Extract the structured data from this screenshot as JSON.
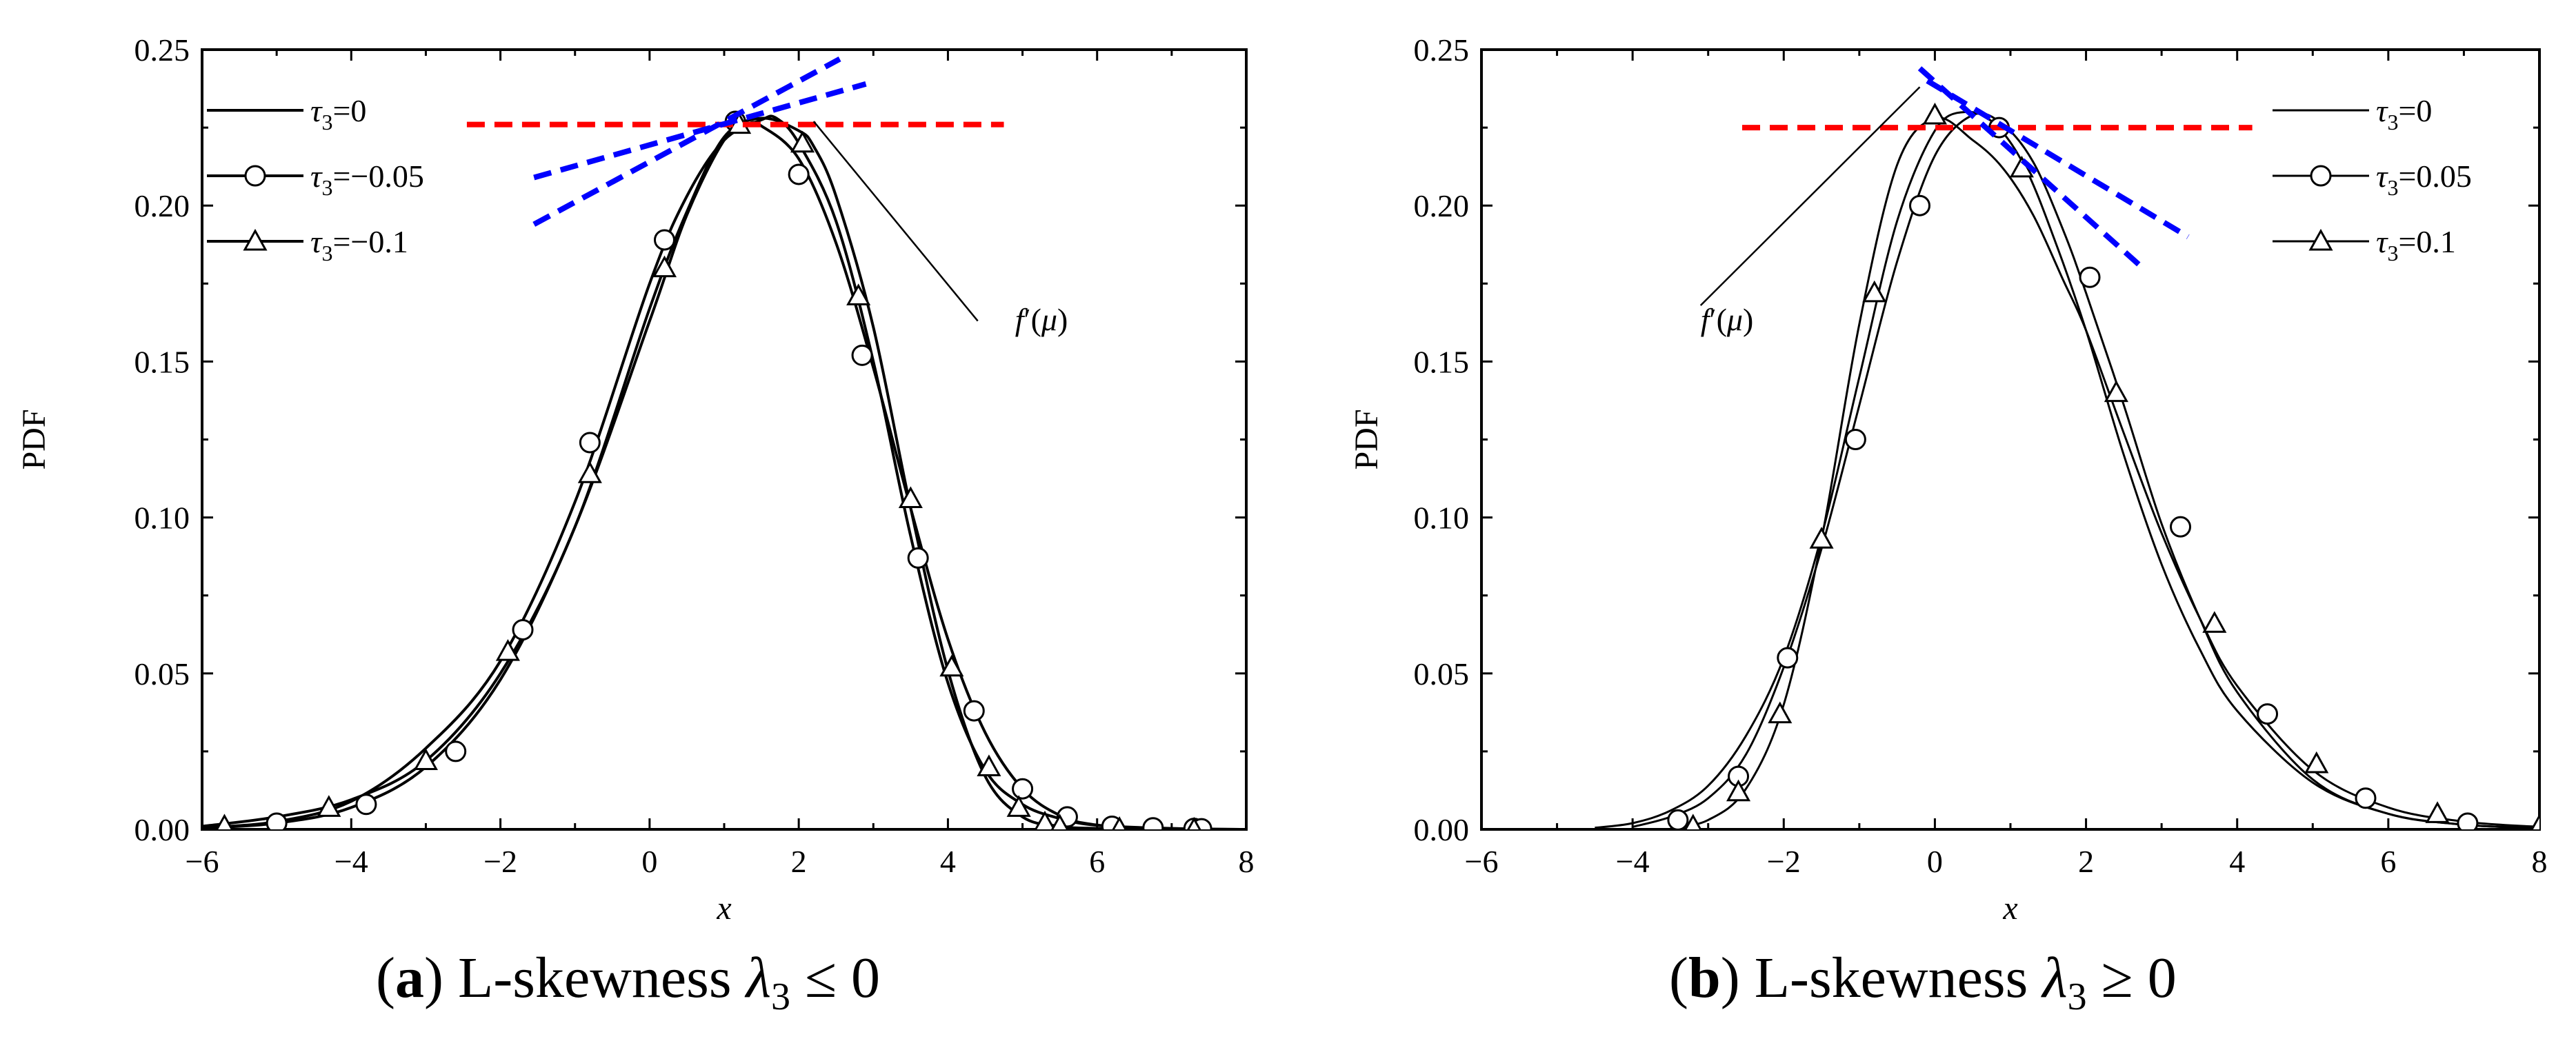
{
  "chart_data": [
    {
      "type": "line",
      "panel": "a",
      "xlabel": "x",
      "ylabel": "PDF",
      "xlim": [
        -6,
        8
      ],
      "ylim": [
        0,
        0.25
      ],
      "xticks": [
        -6,
        -4,
        -2,
        0,
        2,
        4,
        6,
        8
      ],
      "yticks": [
        0,
        0.05,
        0.1,
        0.15,
        0.2,
        0.25
      ],
      "xtick_labels": [
        "−6",
        "−4",
        "−2",
        "0",
        "2",
        "4",
        "6",
        "8"
      ],
      "ytick_labels": [
        "0.00",
        "0.05",
        "0.10",
        "0.15",
        "0.20",
        "0.25"
      ],
      "legend_position": "top-left",
      "series": [
        {
          "name": "τ3=0",
          "legend_main": "τ",
          "legend_sub": "3",
          "legend_rest": "=0",
          "marker": "none",
          "x": [
            -6,
            -5,
            -4,
            -3,
            -2,
            -1,
            0,
            0.5,
            1,
            1.3,
            1.5,
            2,
            2.5,
            3,
            3.5,
            4,
            4.5,
            5,
            5.5,
            6,
            7,
            8
          ],
          "y": [
            0.0004,
            0.002,
            0.007,
            0.02,
            0.048,
            0.097,
            0.163,
            0.197,
            0.221,
            0.226,
            0.2255,
            0.215,
            0.188,
            0.148,
            0.103,
            0.061,
            0.031,
            0.013,
            0.0045,
            0.0014,
            0.0001,
            0
          ]
        },
        {
          "name": "τ3=−0.05",
          "legend_main": "τ",
          "legend_sub": "3",
          "legend_rest": "=−0.05",
          "marker": "circle",
          "x": [
            -6,
            -5,
            -4,
            -3,
            -2,
            -1,
            0,
            0.5,
            1,
            1.5,
            1.7,
            2,
            2.5,
            3,
            3.5,
            4,
            4.5,
            5,
            5.5,
            6,
            7,
            8
          ],
          "y": [
            0.0005,
            0.0025,
            0.009,
            0.026,
            0.054,
            0.105,
            0.175,
            0.203,
            0.221,
            0.2275,
            0.228,
            0.22,
            0.195,
            0.15,
            0.094,
            0.047,
            0.019,
            0.008,
            0.0035,
            0.0013,
            0.0003,
            0
          ]
        },
        {
          "name": "τ3=−0.1",
          "legend_main": "τ",
          "legend_sub": "3",
          "legend_rest": "=−0.1",
          "marker": "triangle",
          "x": [
            -6,
            -5,
            -4,
            -3,
            -2,
            -1,
            0,
            0.5,
            1,
            1.5,
            2,
            2.2,
            2.5,
            3,
            3.5,
            4,
            4.5,
            5,
            5.5,
            6,
            7,
            8
          ],
          "y": [
            0.001,
            0.004,
            0.0095,
            0.022,
            0.05,
            0.097,
            0.167,
            0.198,
            0.222,
            0.228,
            0.224,
            0.219,
            0.203,
            0.161,
            0.103,
            0.051,
            0.017,
            0.004,
            0.001,
            0.0003,
            0,
            0
          ]
        }
      ],
      "markers": {
        "circle": {
          "x": [
            -5.0,
            -3.8,
            -2.6,
            -1.7,
            -0.8,
            0.2,
            1.15,
            2.0,
            2.85,
            3.6,
            4.35,
            5.0,
            5.6,
            6.2,
            6.75,
            7.3,
            7.4
          ],
          "y": [
            0.002,
            0.008,
            0.025,
            0.064,
            0.124,
            0.189,
            0.227,
            0.21,
            0.152,
            0.087,
            0.038,
            0.013,
            0.004,
            0.001,
            0.0005,
            0.0003,
            0.0002
          ]
        },
        "triangle": {
          "x": [
            -5.7,
            -4.3,
            -3.0,
            -1.9,
            -0.8,
            0.2,
            1.2,
            2.05,
            2.8,
            3.5,
            4.05,
            4.55,
            4.95,
            5.3,
            5.5,
            6.3,
            7.3
          ],
          "y": [
            0.001,
            0.007,
            0.022,
            0.057,
            0.114,
            0.18,
            0.226,
            0.22,
            0.171,
            0.106,
            0.052,
            0.02,
            0.007,
            0.002,
            0.001,
            0.0002,
            0
          ]
        }
      },
      "reference_lines": [
        {
          "color": "#ff0000",
          "x1": -2.45,
          "y1": 0.226,
          "x2": 4.75,
          "y2": 0.226
        },
        {
          "color": "#0000ff",
          "x1": -1.55,
          "y1": 0.194,
          "x2": 2.55,
          "y2": 0.247
        },
        {
          "color": "#0000ff",
          "x1": -1.55,
          "y1": 0.209,
          "x2": 2.9,
          "y2": 0.239
        }
      ],
      "annotation": {
        "text_italic": "f",
        "text_rest": "′(",
        "text_mu": "μ",
        "text_close": ")",
        "line_from": [
          2.2,
          0.227
        ],
        "line_to": [
          4.4,
          0.163
        ],
        "text_at": [
          4.9,
          0.16
        ]
      }
    },
    {
      "type": "line",
      "panel": "b",
      "xlabel": "x",
      "ylabel": "PDF",
      "xlim": [
        -6,
        8
      ],
      "ylim": [
        0,
        0.25
      ],
      "xticks": [
        -6,
        -4,
        -2,
        0,
        2,
        4,
        6,
        8
      ],
      "yticks": [
        0,
        0.05,
        0.1,
        0.15,
        0.2,
        0.25
      ],
      "xtick_labels": [
        "−6",
        "−4",
        "−2",
        "0",
        "2",
        "4",
        "6",
        "8"
      ],
      "ytick_labels": [
        "0.00",
        "0.05",
        "0.10",
        "0.15",
        "0.20",
        "0.25"
      ],
      "legend_position": "top-right",
      "series": [
        {
          "name": "τ3=0",
          "legend_main": "τ",
          "legend_sub": "3",
          "legend_rest": "=0",
          "marker": "none",
          "x": [
            -4.5,
            -4,
            -3.5,
            -3,
            -2.5,
            -2,
            -1.5,
            -1,
            -0.5,
            0,
            0.4,
            0.8,
            1.2,
            1.6,
            2,
            2.5,
            3,
            3.5,
            4,
            5,
            6,
            7,
            8
          ],
          "y": [
            0.0005,
            0.002,
            0.006,
            0.014,
            0.03,
            0.055,
            0.094,
            0.145,
            0.195,
            0.224,
            0.23,
            0.226,
            0.212,
            0.188,
            0.16,
            0.12,
            0.085,
            0.058,
            0.038,
            0.015,
            0.005,
            0.0015,
            0.0004
          ]
        },
        {
          "name": "τ3=0.05",
          "legend_main": "τ",
          "legend_sub": "3",
          "legend_rest": "=0.05",
          "marker": "circle",
          "x": [
            -4,
            -3.5,
            -3,
            -2.5,
            -2,
            -1.5,
            -1,
            -0.5,
            0,
            0.5,
            0.9,
            1.3,
            1.7,
            2,
            2.5,
            3,
            3.5,
            4,
            5,
            6,
            7,
            8
          ],
          "y": [
            0.0008,
            0.004,
            0.01,
            0.024,
            0.052,
            0.09,
            0.136,
            0.182,
            0.216,
            0.229,
            0.226,
            0.214,
            0.192,
            0.172,
            0.136,
            0.098,
            0.068,
            0.044,
            0.016,
            0.005,
            0.0015,
            0.0004
          ]
        },
        {
          "name": "τ3=0.1",
          "legend_main": "τ",
          "legend_sub": "3",
          "legend_rest": "=0.1",
          "marker": "triangle",
          "x": [
            -3.5,
            -3,
            -2.5,
            -2,
            -1.5,
            -1,
            -0.5,
            0,
            0.5,
            0.9,
            1.3,
            1.7,
            2,
            2.5,
            3,
            3.5,
            4,
            5,
            6,
            7,
            8
          ],
          "y": [
            0.0003,
            0.003,
            0.013,
            0.04,
            0.093,
            0.162,
            0.213,
            0.228,
            0.221,
            0.212,
            0.197,
            0.176,
            0.16,
            0.127,
            0.095,
            0.068,
            0.046,
            0.019,
            0.007,
            0.0025,
            0.0008
          ]
        }
      ],
      "markers": {
        "circle": {
          "x": [
            -3.4,
            -2.6,
            -1.95,
            -1.05,
            -0.2,
            0.85,
            2.05,
            3.25,
            4.4,
            5.7,
            7.05
          ],
          "y": [
            0.003,
            0.017,
            0.055,
            0.125,
            0.2,
            0.225,
            0.177,
            0.097,
            0.037,
            0.01,
            0.002
          ]
        },
        "triangle": {
          "x": [
            -3.2,
            -2.6,
            -2.05,
            -1.5,
            -0.8,
            0,
            1.15,
            2.4,
            3.7,
            5.05,
            6.65,
            8
          ],
          "y": [
            0.001,
            0.012,
            0.037,
            0.093,
            0.172,
            0.229,
            0.212,
            0.14,
            0.066,
            0.021,
            0.005,
            0.001
          ]
        }
      },
      "reference_lines": [
        {
          "color": "#ff0000",
          "x1": -2.55,
          "y1": 0.225,
          "x2": 4.2,
          "y2": 0.225
        },
        {
          "color": "#0000ff",
          "x1": -0.2,
          "y1": 0.244,
          "x2": 2.75,
          "y2": 0.18
        },
        {
          "color": "#0000ff",
          "x1": -0.1,
          "y1": 0.24,
          "x2": 3.35,
          "y2": 0.19
        }
      ],
      "annotation": {
        "text_italic": "f",
        "text_rest": "′(",
        "text_mu": "μ",
        "text_close": ")",
        "line_from": [
          -0.2,
          0.238
        ],
        "line_to": [
          -3.1,
          0.168
        ],
        "text_at": [
          -3.1,
          0.16
        ]
      }
    }
  ],
  "captions": [
    {
      "panel": "a",
      "open": "(",
      "letter": "a",
      "close": ")",
      "text": " L-skewness ",
      "symbol": "λ",
      "sub": "3",
      "rel": " ≤ 0"
    },
    {
      "panel": "b",
      "open": "(",
      "letter": "b",
      "close": ")",
      "text": " L-skewness  ",
      "symbol": "λ",
      "sub": "3",
      "rel": " ≥ 0"
    }
  ]
}
